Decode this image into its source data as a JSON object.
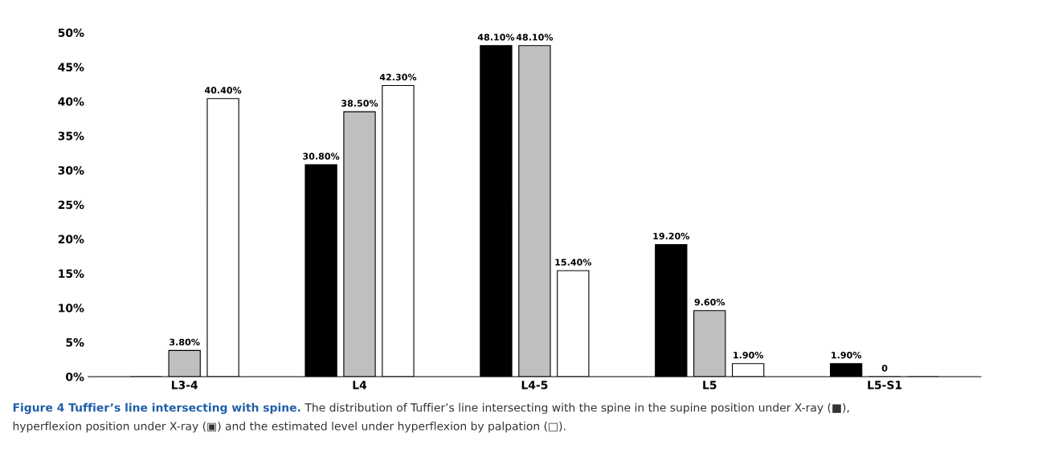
{
  "chart_data": {
    "type": "bar",
    "categories": [
      "L3-4",
      "L4",
      "L4-5",
      "L5",
      "L5-S1"
    ],
    "series": [
      {
        "color": "#000000",
        "values": [
          0,
          30.8,
          48.1,
          19.2,
          1.9
        ],
        "value_labels": [
          null,
          "30.80%",
          "48.10%",
          "19.20%",
          "1.90%"
        ]
      },
      {
        "color": "#bfbfbf",
        "values": [
          3.8,
          38.5,
          48.1,
          9.6,
          0
        ],
        "value_labels": [
          "3.80%",
          "38.50%",
          "48.10%",
          "9.60%",
          "0"
        ]
      },
      {
        "color": "#ffffff",
        "values": [
          40.4,
          42.3,
          15.4,
          1.9,
          0
        ],
        "value_labels": [
          "40.40%",
          "42.30%",
          "15.40%",
          "1.90%",
          null
        ]
      }
    ],
    "ylim": [
      0,
      50
    ],
    "yticks": [
      {
        "value": 0,
        "label": "0%"
      },
      {
        "value": 5,
        "label": "5%"
      },
      {
        "value": 10,
        "label": "10%"
      },
      {
        "value": 15,
        "label": "15%"
      },
      {
        "value": 20,
        "label": "20%"
      },
      {
        "value": 25,
        "label": "25%"
      },
      {
        "value": 30,
        "label": "30%"
      },
      {
        "value": 35,
        "label": "35%"
      },
      {
        "value": 40,
        "label": "40%"
      },
      {
        "value": 45,
        "label": "45%"
      },
      {
        "value": 50,
        "label": "50%"
      }
    ],
    "grid": false,
    "annotations": [
      "Figure 4 Tuffier’s line intersecting with spine.",
      "The distribution of Tuffier’s line intersecting with the spine in the supine position under X-ray (■),",
      "hyperflexion position under X-ray (▣) and the estimated level under hyperflexion by palpation (□)."
    ]
  }
}
